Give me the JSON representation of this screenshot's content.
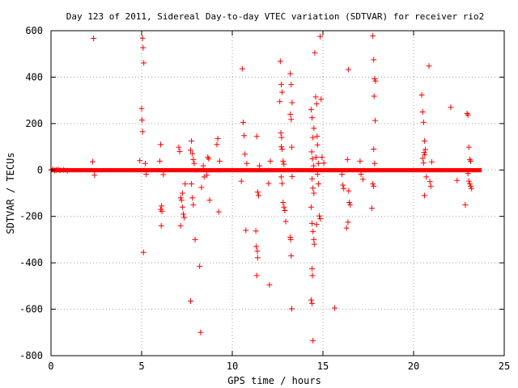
{
  "chart_data": {
    "type": "scatter",
    "title": "Day 123 of 2011, Sidereal Day-to-day VTEC variation (SDTVAR) for receiver rio2",
    "xlabel": "GPS time / hours",
    "ylabel": "SDTVAR / TECUs",
    "xlim": [
      0,
      25
    ],
    "ylim": [
      -800,
      600
    ],
    "xticks": [
      0,
      5,
      10,
      15,
      20,
      25
    ],
    "yticks": [
      -800,
      -600,
      -400,
      -200,
      0,
      200,
      400,
      600
    ],
    "xtick_labels": [
      "0",
      "5",
      "10",
      "15",
      "20",
      "25"
    ],
    "ytick_labels": [
      "-800",
      "-600",
      "-400",
      "-200",
      "0",
      "200",
      "400",
      "600"
    ],
    "grid": true,
    "legend": "none",
    "marker": "plus",
    "color": "#ff0000",
    "dense_band": {
      "x_start": 0.0,
      "x_end": 23.75,
      "y_min": -10,
      "y_max": 8
    },
    "series": [
      {
        "points": [
          [
            0.0,
            0
          ],
          [
            0.1,
            3
          ],
          [
            0.2,
            -2
          ],
          [
            0.3,
            1
          ],
          [
            0.4,
            2
          ],
          [
            0.5,
            -1
          ],
          [
            0.7,
            0
          ],
          [
            0.9,
            -3
          ],
          [
            2.35,
            567
          ],
          [
            2.3,
            36
          ],
          [
            2.4,
            -22
          ],
          [
            5.05,
            568
          ],
          [
            5.08,
            527
          ],
          [
            5.12,
            461
          ],
          [
            5.0,
            265
          ],
          [
            5.02,
            215
          ],
          [
            5.05,
            165
          ],
          [
            5.1,
            -355
          ],
          [
            4.9,
            40
          ],
          [
            5.2,
            28
          ],
          [
            5.25,
            -18
          ],
          [
            6.05,
            110
          ],
          [
            6.1,
            -155
          ],
          [
            6.05,
            -170
          ],
          [
            6.12,
            -178
          ],
          [
            6.08,
            -240
          ],
          [
            6.0,
            38
          ],
          [
            6.2,
            -20
          ],
          [
            7.05,
            98
          ],
          [
            7.1,
            80
          ],
          [
            7.15,
            -120
          ],
          [
            7.2,
            -130
          ],
          [
            7.25,
            -160
          ],
          [
            7.3,
            -190
          ],
          [
            7.35,
            -205
          ],
          [
            7.15,
            -240
          ],
          [
            7.25,
            -100
          ],
          [
            7.4,
            -60
          ],
          [
            7.75,
            125
          ],
          [
            7.7,
            85
          ],
          [
            7.8,
            70
          ],
          [
            7.85,
            45
          ],
          [
            7.75,
            -60
          ],
          [
            7.8,
            -120
          ],
          [
            7.85,
            -150
          ],
          [
            7.7,
            -565
          ],
          [
            7.95,
            -300
          ],
          [
            7.9,
            28
          ],
          [
            8.2,
            -415
          ],
          [
            8.25,
            -700
          ],
          [
            8.3,
            -75
          ],
          [
            8.4,
            18
          ],
          [
            8.45,
            -30
          ],
          [
            8.65,
            55
          ],
          [
            8.7,
            48
          ],
          [
            8.75,
            -130
          ],
          [
            8.6,
            -22
          ],
          [
            9.2,
            135
          ],
          [
            9.15,
            110
          ],
          [
            9.25,
            -180
          ],
          [
            9.3,
            38
          ],
          [
            10.55,
            436
          ],
          [
            10.6,
            205
          ],
          [
            10.65,
            148
          ],
          [
            10.7,
            68
          ],
          [
            10.75,
            -260
          ],
          [
            10.8,
            28
          ],
          [
            10.5,
            -48
          ],
          [
            11.35,
            145
          ],
          [
            11.4,
            -95
          ],
          [
            11.45,
            -110
          ],
          [
            11.3,
            -263
          ],
          [
            11.32,
            -330
          ],
          [
            11.38,
            -350
          ],
          [
            11.4,
            -378
          ],
          [
            11.35,
            -455
          ],
          [
            11.5,
            18
          ],
          [
            12.05,
            -495
          ],
          [
            12.1,
            38
          ],
          [
            12.0,
            -58
          ],
          [
            12.65,
            468
          ],
          [
            12.7,
            368
          ],
          [
            12.75,
            335
          ],
          [
            12.62,
            295
          ],
          [
            12.68,
            160
          ],
          [
            12.72,
            140
          ],
          [
            12.7,
            100
          ],
          [
            12.75,
            90
          ],
          [
            12.8,
            38
          ],
          [
            12.85,
            25
          ],
          [
            12.7,
            -30
          ],
          [
            12.75,
            -58
          ],
          [
            12.8,
            -140
          ],
          [
            12.85,
            -160
          ],
          [
            12.9,
            -175
          ],
          [
            12.95,
            -222
          ],
          [
            13.2,
            415
          ],
          [
            13.25,
            368
          ],
          [
            13.3,
            290
          ],
          [
            13.2,
            240
          ],
          [
            13.25,
            218
          ],
          [
            13.28,
            98
          ],
          [
            13.3,
            -28
          ],
          [
            13.2,
            -290
          ],
          [
            13.22,
            -300
          ],
          [
            13.25,
            -370
          ],
          [
            13.28,
            -598
          ],
          [
            14.35,
            260
          ],
          [
            14.4,
            225
          ],
          [
            14.45,
            140
          ],
          [
            14.5,
            180
          ],
          [
            14.38,
            78
          ],
          [
            14.42,
            48
          ],
          [
            14.48,
            18
          ],
          [
            14.4,
            -38
          ],
          [
            14.45,
            -78
          ],
          [
            14.5,
            -100
          ],
          [
            14.35,
            -160
          ],
          [
            14.4,
            -230
          ],
          [
            14.45,
            -265
          ],
          [
            14.5,
            -300
          ],
          [
            14.52,
            -320
          ],
          [
            14.4,
            -425
          ],
          [
            14.42,
            -455
          ],
          [
            14.35,
            -560
          ],
          [
            14.4,
            -575
          ],
          [
            14.45,
            -735
          ],
          [
            14.55,
            505
          ],
          [
            14.6,
            315
          ],
          [
            14.65,
            285
          ],
          [
            14.68,
            145
          ],
          [
            14.7,
            108
          ],
          [
            14.62,
            55
          ],
          [
            14.75,
            28
          ],
          [
            14.7,
            -18
          ],
          [
            14.75,
            -60
          ],
          [
            14.8,
            -198
          ],
          [
            14.85,
            -210
          ],
          [
            14.65,
            -235
          ],
          [
            14.85,
            575
          ],
          [
            14.9,
            305
          ],
          [
            14.95,
            55
          ],
          [
            15.05,
            30
          ],
          [
            15.65,
            -595
          ],
          [
            16.05,
            -18
          ],
          [
            16.1,
            -65
          ],
          [
            16.15,
            -80
          ],
          [
            16.35,
            45
          ],
          [
            16.4,
            433
          ],
          [
            16.45,
            -140
          ],
          [
            16.5,
            -150
          ],
          [
            16.38,
            -225
          ],
          [
            16.3,
            -250
          ],
          [
            16.42,
            -90
          ],
          [
            17.05,
            38
          ],
          [
            17.1,
            -18
          ],
          [
            17.2,
            -40
          ],
          [
            17.75,
            578
          ],
          [
            17.8,
            475
          ],
          [
            17.85,
            393
          ],
          [
            17.9,
            383
          ],
          [
            17.82,
            318
          ],
          [
            17.88,
            213
          ],
          [
            17.8,
            90
          ],
          [
            17.75,
            -60
          ],
          [
            17.8,
            -70
          ],
          [
            17.7,
            -165
          ],
          [
            17.85,
            28
          ],
          [
            20.45,
            323
          ],
          [
            20.5,
            250
          ],
          [
            20.55,
            205
          ],
          [
            20.6,
            125
          ],
          [
            20.65,
            88
          ],
          [
            20.58,
            75
          ],
          [
            20.62,
            65
          ],
          [
            20.5,
            50
          ],
          [
            20.55,
            30
          ],
          [
            20.7,
            -30
          ],
          [
            20.6,
            -110
          ],
          [
            20.85,
            448
          ],
          [
            20.9,
            -50
          ],
          [
            20.95,
            -70
          ],
          [
            21.0,
            35
          ],
          [
            22.05,
            270
          ],
          [
            22.4,
            -45
          ],
          [
            22.95,
            243
          ],
          [
            23.0,
            237
          ],
          [
            23.05,
            98
          ],
          [
            23.1,
            45
          ],
          [
            23.15,
            38
          ],
          [
            23.0,
            -15
          ],
          [
            23.05,
            -48
          ],
          [
            23.1,
            -60
          ],
          [
            23.15,
            -70
          ],
          [
            23.2,
            -80
          ],
          [
            22.85,
            -150
          ]
        ]
      }
    ]
  }
}
